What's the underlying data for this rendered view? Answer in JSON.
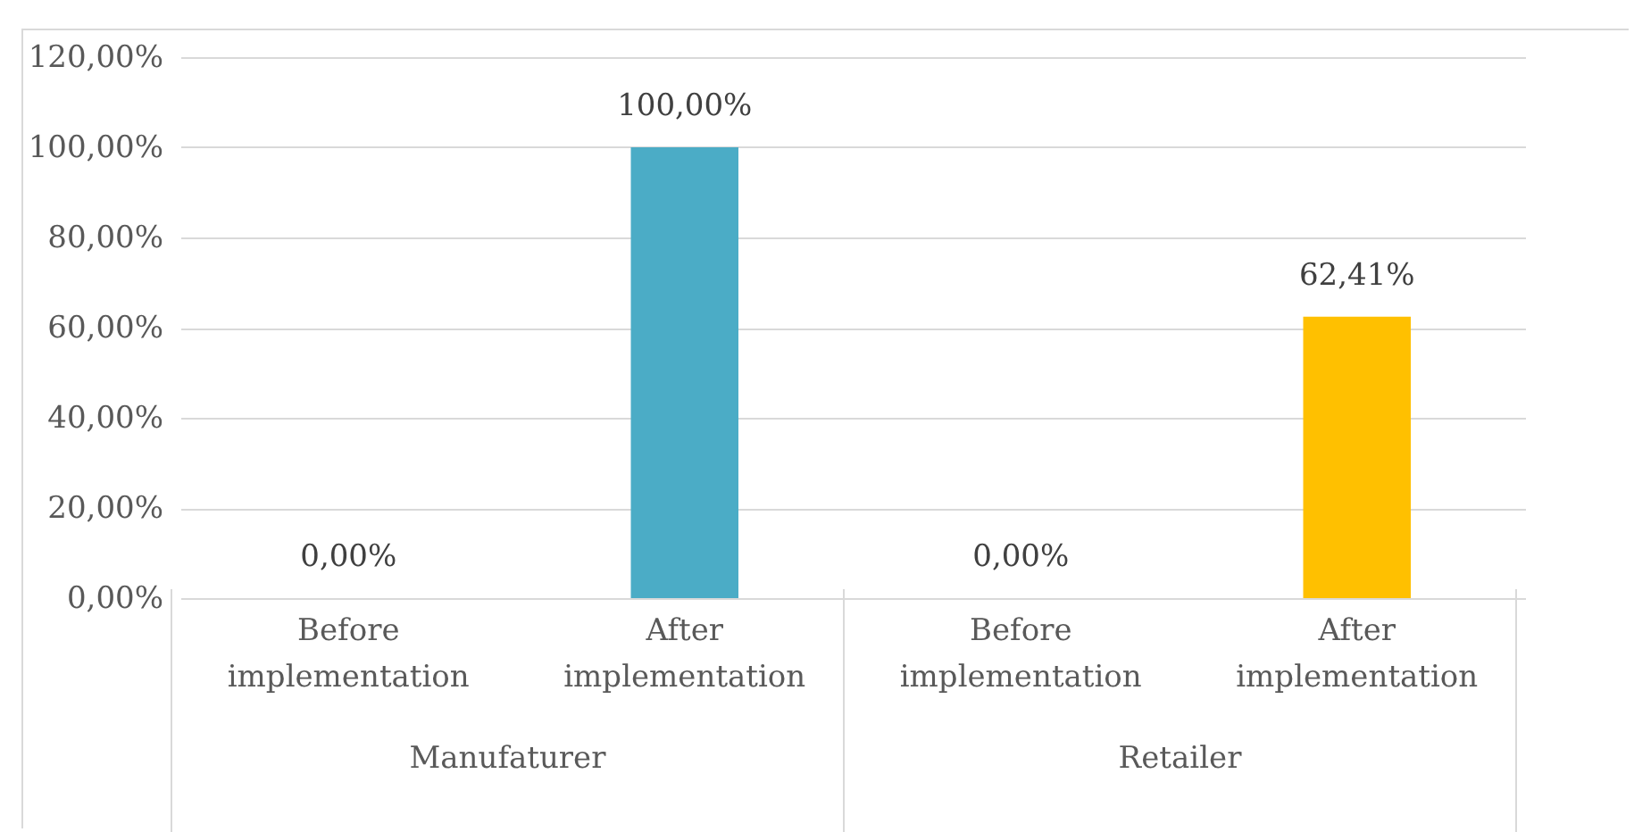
{
  "chart_data": {
    "type": "bar",
    "categories": [
      "Before implementation",
      "After implementation",
      "Before implementation",
      "After implementation"
    ],
    "values": [
      0,
      100,
      0,
      62.41
    ],
    "colors": [
      "#4bacc6",
      "#4bacc6",
      "#ffc000",
      "#ffc000"
    ],
    "value_labels": [
      "0,00%",
      "100,00%",
      "0,00%",
      "62,41%"
    ],
    "ylim": [
      0,
      120
    ],
    "yticks": [
      {
        "value": 0,
        "label": "0,00%"
      },
      {
        "value": 20,
        "label": "20,00%"
      },
      {
        "value": 40,
        "label": "40,00%"
      },
      {
        "value": 60,
        "label": "60,00%"
      },
      {
        "value": 80,
        "label": "80,00%"
      },
      {
        "value": 100,
        "label": "100,00%"
      },
      {
        "value": 120,
        "label": "120,00%"
      }
    ],
    "grid": "y",
    "annotations": [
      "Manufaturer",
      "Retailer"
    ]
  }
}
